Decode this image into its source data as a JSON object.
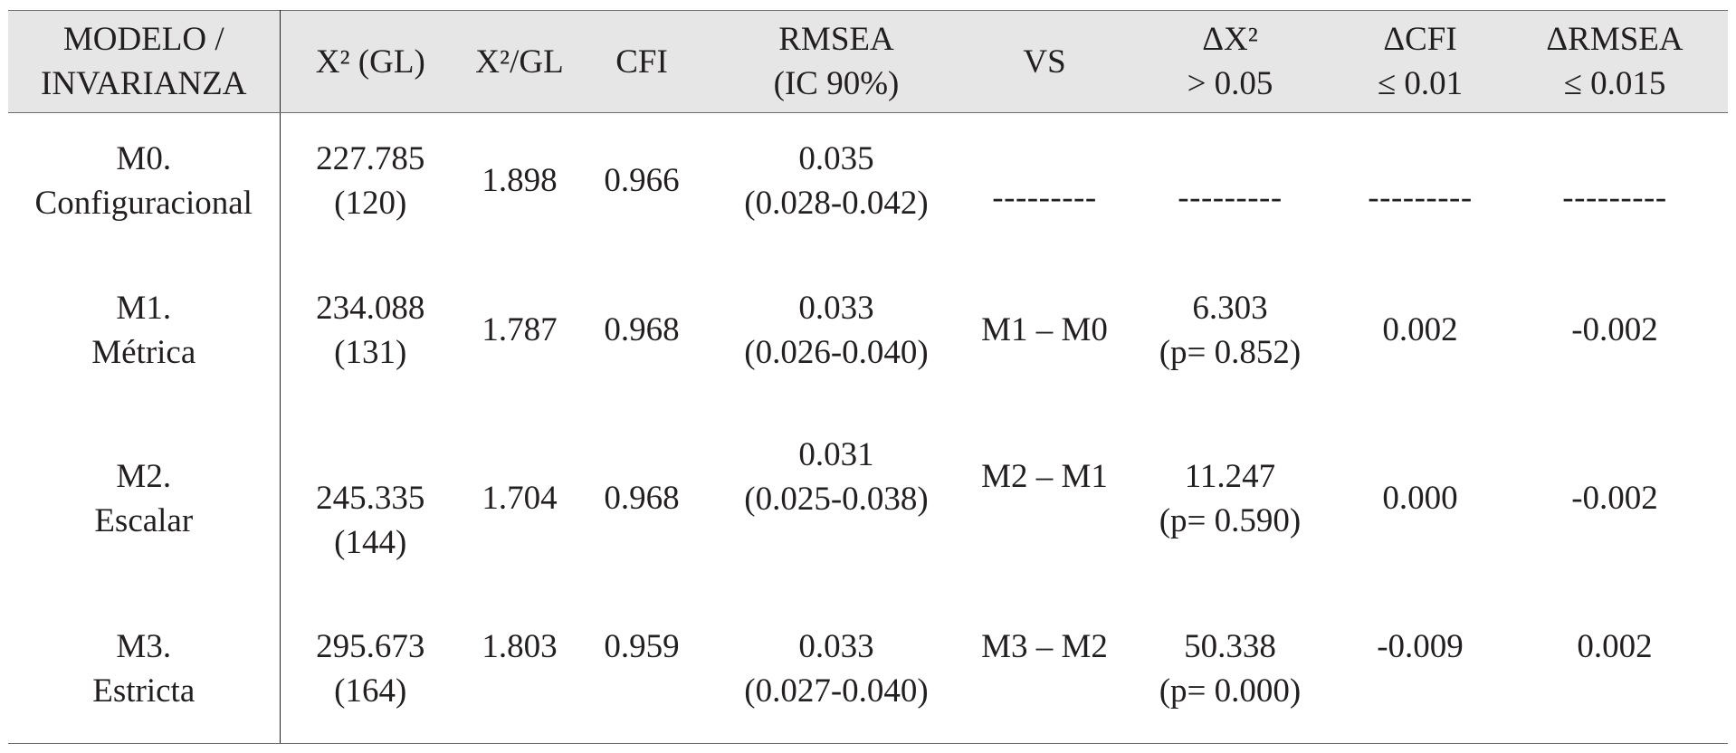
{
  "header": {
    "col0_line1": "MODELO /",
    "col0_line2": "INVARIANZA",
    "col1": "X² (GL)",
    "col2": "X²/GL",
    "col3": "CFI",
    "col4_line1": "RMSEA",
    "col4_line2": "(IC 90%)",
    "col5": "VS",
    "col6_line1": "ΔX²",
    "col6_line2": "> 0.05",
    "col7_line1": "ΔCFI",
    "col7_line2": "≤ 0.01",
    "col8_line1": "ΔRMSEA",
    "col8_line2": "≤ 0.015"
  },
  "rows": [
    {
      "model_line1": "M0.",
      "model_line2": "Configuracional",
      "chi_value": "227.785",
      "chi_df": "(120)",
      "chi_gl": "1.898",
      "cfi": "0.966",
      "rmsea": "0.035",
      "rmsea_ci": "(0.028-0.042)",
      "vs": "---------",
      "delta_chi": "---------",
      "delta_chi_p": "",
      "delta_cfi": "---------",
      "delta_rmsea": "---------"
    },
    {
      "model_line1": "M1.",
      "model_line2": "Métrica",
      "chi_value": "234.088",
      "chi_df": "(131)",
      "chi_gl": "1.787",
      "cfi": "0.968",
      "rmsea": "0.033",
      "rmsea_ci": "(0.026-0.040)",
      "vs": "M1 – M0",
      "delta_chi": "6.303",
      "delta_chi_p": "(p= 0.852)",
      "delta_cfi": "0.002",
      "delta_rmsea": "-0.002"
    },
    {
      "model_line1": "M2.",
      "model_line2": "Escalar",
      "chi_value": "245.335",
      "chi_df": "(144)",
      "chi_gl": "1.704",
      "cfi": "0.968",
      "rmsea": "0.031",
      "rmsea_ci": "(0.025-0.038)",
      "vs": "M2 – M1",
      "delta_chi": "11.247",
      "delta_chi_p": "(p= 0.590)",
      "delta_cfi": "0.000",
      "delta_rmsea": "-0.002"
    },
    {
      "model_line1": "M3.",
      "model_line2": "Estricta",
      "chi_value": "295.673",
      "chi_df": "(164)",
      "chi_gl": "1.803",
      "cfi": "0.959",
      "rmsea": "0.033",
      "rmsea_ci": "(0.027-0.040)",
      "vs": "M3 – M2",
      "delta_chi": "50.338",
      "delta_chi_p": "(p= 0.000)",
      "delta_cfi": "-0.009",
      "delta_rmsea": "0.002"
    }
  ]
}
